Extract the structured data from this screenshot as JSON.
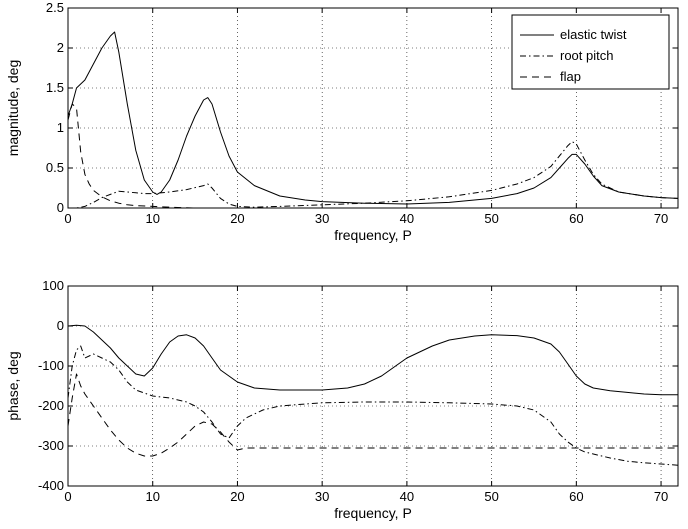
{
  "chart_data": [
    {
      "type": "line",
      "title": "",
      "xlabel": "frequency, P",
      "ylabel": "magnitude, deg",
      "xlim": [
        0,
        72
      ],
      "ylim": [
        0,
        2.5
      ],
      "xticks": [
        0,
        10,
        20,
        30,
        40,
        50,
        60,
        70
      ],
      "yticks": [
        0,
        0.5,
        1,
        1.5,
        2,
        2.5
      ],
      "ytick_labels": [
        "0",
        "0.5",
        "1",
        "1.5",
        "2",
        "2.5"
      ],
      "grid": true,
      "legend_position": "top-right",
      "series": [
        {
          "name": "elastic twist",
          "style": "solid",
          "x": [
            0,
            0.5,
            1,
            2,
            3,
            4,
            5,
            5.5,
            6,
            7,
            8,
            9,
            10,
            10.5,
            11,
            12,
            13,
            14,
            15,
            16,
            16.5,
            17,
            18,
            19,
            20,
            22,
            25,
            28,
            30,
            35,
            40,
            45,
            50,
            53,
            55,
            57,
            58,
            59,
            59.5,
            60,
            61,
            62,
            63,
            65,
            68,
            70,
            72
          ],
          "y": [
            1.15,
            1.3,
            1.5,
            1.6,
            1.8,
            2.0,
            2.15,
            2.2,
            1.95,
            1.3,
            0.72,
            0.35,
            0.2,
            0.17,
            0.2,
            0.35,
            0.6,
            0.9,
            1.15,
            1.35,
            1.38,
            1.3,
            0.95,
            0.65,
            0.45,
            0.28,
            0.15,
            0.1,
            0.08,
            0.06,
            0.05,
            0.07,
            0.12,
            0.18,
            0.25,
            0.38,
            0.5,
            0.62,
            0.67,
            0.67,
            0.55,
            0.4,
            0.28,
            0.2,
            0.15,
            0.13,
            0.12
          ]
        },
        {
          "name": "root pitch",
          "style": "dashdot",
          "x": [
            0,
            1,
            2,
            3,
            4,
            5,
            6,
            7,
            8,
            9,
            10,
            12,
            14,
            16,
            16.5,
            17,
            18,
            19,
            20,
            22,
            25,
            30,
            35,
            40,
            45,
            50,
            53,
            55,
            57,
            58,
            59,
            59.5,
            60,
            61,
            62,
            63,
            65,
            68,
            70,
            72
          ],
          "y": [
            0,
            0,
            0.02,
            0.07,
            0.13,
            0.17,
            0.21,
            0.2,
            0.19,
            0.18,
            0.18,
            0.2,
            0.23,
            0.28,
            0.3,
            0.25,
            0.12,
            0.05,
            0.02,
            0.01,
            0.02,
            0.04,
            0.06,
            0.09,
            0.14,
            0.22,
            0.3,
            0.38,
            0.52,
            0.65,
            0.78,
            0.83,
            0.8,
            0.6,
            0.42,
            0.3,
            0.2,
            0.15,
            0.13,
            0.12
          ]
        },
        {
          "name": "flap",
          "style": "dashed",
          "x": [
            0,
            0.5,
            1,
            1.5,
            2,
            2.5,
            3,
            4,
            5,
            6,
            7,
            8,
            10,
            12,
            15,
            20
          ],
          "y": [
            1.1,
            1.3,
            1.25,
            0.7,
            0.42,
            0.3,
            0.22,
            0.14,
            0.09,
            0.06,
            0.04,
            0.03,
            0.02,
            0.01,
            0,
            0
          ]
        }
      ],
      "legend": [
        "elastic twist",
        "root pitch",
        "flap"
      ]
    },
    {
      "type": "line",
      "title": "",
      "xlabel": "frequency, P",
      "ylabel": "phase, deg",
      "xlim": [
        0,
        72
      ],
      "ylim": [
        -400,
        100
      ],
      "xticks": [
        0,
        10,
        20,
        30,
        40,
        50,
        60,
        70
      ],
      "yticks": [
        -400,
        -300,
        -200,
        -100,
        0,
        100
      ],
      "ytick_labels": [
        "-400",
        "-300",
        "-200",
        "-100",
        "0",
        "100"
      ],
      "grid": true,
      "series": [
        {
          "name": "elastic twist",
          "style": "solid",
          "x": [
            0,
            1,
            2,
            3,
            4,
            5,
            6,
            7,
            8,
            9,
            10,
            11,
            12,
            13,
            14,
            15,
            16,
            17,
            18,
            20,
            22,
            25,
            30,
            33,
            35,
            37,
            40,
            43,
            45,
            48,
            50,
            53,
            55,
            57,
            58,
            59,
            60,
            61,
            62,
            64,
            66,
            68,
            70,
            72
          ],
          "y": [
            0,
            2,
            0,
            -15,
            -35,
            -55,
            -80,
            -100,
            -120,
            -125,
            -105,
            -70,
            -40,
            -25,
            -22,
            -30,
            -50,
            -80,
            -110,
            -140,
            -155,
            -160,
            -160,
            -155,
            -145,
            -125,
            -80,
            -50,
            -35,
            -25,
            -22,
            -24,
            -30,
            -45,
            -65,
            -95,
            -125,
            -145,
            -155,
            -162,
            -166,
            -170,
            -172,
            -172
          ]
        },
        {
          "name": "root pitch",
          "style": "dashdot",
          "x": [
            0,
            0.5,
            1,
            1.5,
            2,
            3,
            4,
            5,
            6,
            7,
            8,
            10,
            12,
            14,
            15,
            16,
            17,
            18,
            19,
            20,
            21,
            23,
            25,
            28,
            30,
            35,
            40,
            45,
            50,
            53,
            55,
            57,
            58,
            59,
            60,
            61,
            62,
            64,
            66,
            68,
            70,
            72
          ],
          "y": [
            -180,
            -100,
            -60,
            -50,
            -80,
            -70,
            -80,
            -90,
            -110,
            -140,
            -160,
            -175,
            -180,
            -190,
            -200,
            -215,
            -240,
            -270,
            -280,
            -250,
            -230,
            -210,
            -200,
            -195,
            -192,
            -190,
            -190,
            -192,
            -195,
            -200,
            -210,
            -240,
            -270,
            -290,
            -305,
            -315,
            -320,
            -330,
            -338,
            -342,
            -345,
            -348
          ]
        },
        {
          "name": "flap",
          "style": "dashed",
          "x": [
            0,
            0.5,
            1,
            1.5,
            2,
            3,
            4,
            5,
            6,
            7,
            8,
            9,
            10,
            11,
            12,
            13,
            14,
            15,
            16,
            17,
            18,
            19,
            20,
            21,
            25,
            30,
            40,
            50,
            60,
            70,
            72
          ],
          "y": [
            -250,
            -180,
            -120,
            -150,
            -170,
            -200,
            -230,
            -260,
            -285,
            -305,
            -318,
            -325,
            -325,
            -318,
            -305,
            -290,
            -270,
            -250,
            -240,
            -245,
            -265,
            -290,
            -310,
            -305,
            -305,
            -305,
            -305,
            -305,
            -305,
            -305,
            -305
          ]
        }
      ]
    }
  ]
}
